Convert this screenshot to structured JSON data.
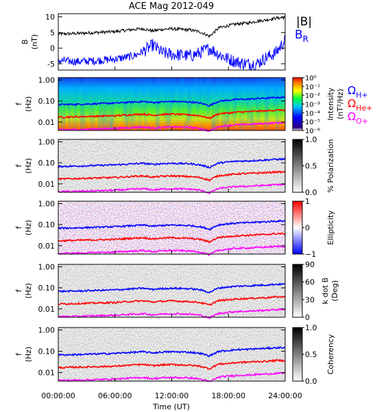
{
  "title": "ACE Mag 2012-049",
  "xlabel": "Time (UT)",
  "x_ticks": [
    "00:00:00",
    "06:00:00",
    "12:00:00",
    "18:00:00",
    "24:00:00"
  ],
  "colors": {
    "b_total": "#000000",
    "b_r": "#0000ff",
    "h_plus": "#0000ff",
    "he_plus": "#ff0000",
    "o_plus": "#ff00ff"
  },
  "chart_data": [
    {
      "type": "line",
      "ylabel": "B",
      "yunit": "(nT)",
      "ylim": [
        -7,
        11
      ],
      "y_ticks": [
        "10",
        "5",
        "0",
        "-5"
      ],
      "series": [
        {
          "name": "|B|",
          "x": [
            0,
            2,
            4,
            6,
            8,
            9,
            10,
            11,
            12,
            13,
            14,
            15,
            16,
            17,
            18,
            19,
            20,
            21,
            22,
            23,
            24
          ],
          "values": [
            4.5,
            4.7,
            5.0,
            5.3,
            6.0,
            6.2,
            5.5,
            6.0,
            6.2,
            6.0,
            5.8,
            5.2,
            3.8,
            6.5,
            7.2,
            7.8,
            8.0,
            8.6,
            9.0,
            9.6,
            9.8
          ]
        },
        {
          "name": "B",
          "subscript": "R",
          "x": [
            0,
            2,
            4,
            6,
            8,
            9,
            10,
            11,
            12,
            13,
            14,
            15,
            16,
            17,
            18,
            19,
            20,
            21,
            22,
            23,
            24
          ],
          "values": [
            -4.0,
            -4.3,
            -4.0,
            -3.5,
            -2.5,
            -1.0,
            1.0,
            -1.5,
            -2.0,
            -2.2,
            -2.5,
            -1.5,
            0.0,
            -2.0,
            -3.5,
            -4.5,
            -5.0,
            -5.0,
            -3.0,
            -1.5,
            2.5
          ]
        }
      ]
    },
    {
      "type": "heatmap",
      "ylabel": "f",
      "yunit": "(Hz)",
      "y_ticks": [
        "1.00",
        "0.10",
        "0.01"
      ],
      "colorbar_label": "Intensity",
      "colorbar_unit": "(nT²/Hz)",
      "colorbar_ticks": [
        "10⁰",
        "10⁻¹",
        "10⁻²",
        "10⁻³",
        "10⁻⁴",
        "10⁻⁵",
        "10⁻⁶"
      ],
      "legend": [
        {
          "name": "Ω",
          "subscript": "H+"
        },
        {
          "name": "Ω",
          "subscript": "He+"
        },
        {
          "name": "Ω",
          "subscript": "O+"
        }
      ]
    },
    {
      "type": "heatmap",
      "ylabel": "f",
      "yunit": "(Hz)",
      "y_ticks": [
        "1.00",
        "0.10",
        "0.01"
      ],
      "colorbar_label": "% Polarization",
      "colorbar_ticks": [
        "1.0",
        "0.5",
        "0.0"
      ]
    },
    {
      "type": "heatmap",
      "ylabel": "f",
      "yunit": "(Hz)",
      "y_ticks": [
        "1.00",
        "0.10",
        "0.01"
      ],
      "colorbar_label": "Ellipticity",
      "colorbar_ticks": [
        "1",
        "0",
        "−1"
      ]
    },
    {
      "type": "heatmap",
      "ylabel": "f",
      "yunit": "(Hz)",
      "y_ticks": [
        "1.00",
        "0.10",
        "0.01"
      ],
      "colorbar_label": "k dot B",
      "colorbar_unit": "(Deg)",
      "colorbar_ticks": [
        "90",
        "60",
        "30",
        "0"
      ]
    },
    {
      "type": "heatmap",
      "ylabel": "f",
      "yunit": "(Hz)",
      "y_ticks": [
        "1.00",
        "0.10",
        "0.01"
      ],
      "colorbar_label": "Coherency",
      "colorbar_ticks": [
        "1.0",
        "0.5",
        "0.0"
      ]
    }
  ],
  "gyrofrequency_lines": {
    "x": [
      0,
      2,
      4,
      6,
      8,
      9,
      10,
      11,
      12,
      13,
      14,
      15,
      16,
      17,
      18,
      19,
      20,
      21,
      22,
      23,
      24
    ],
    "h_plus": [
      0.068,
      0.07,
      0.075,
      0.08,
      0.09,
      0.095,
      0.084,
      0.092,
      0.095,
      0.093,
      0.09,
      0.08,
      0.06,
      0.098,
      0.11,
      0.12,
      0.123,
      0.131,
      0.137,
      0.147,
      0.15
    ],
    "he_plus": [
      0.017,
      0.018,
      0.019,
      0.02,
      0.023,
      0.024,
      0.021,
      0.023,
      0.024,
      0.023,
      0.022,
      0.02,
      0.015,
      0.025,
      0.027,
      0.03,
      0.031,
      0.033,
      0.034,
      0.037,
      0.037
    ],
    "o_plus": [
      0.0043,
      0.0044,
      0.0047,
      0.005,
      0.0056,
      0.0059,
      0.0052,
      0.0057,
      0.0059,
      0.0058,
      0.0056,
      0.005,
      0.0037,
      0.0061,
      0.0069,
      0.0075,
      0.0077,
      0.0082,
      0.0086,
      0.0092,
      0.0094
    ]
  }
}
